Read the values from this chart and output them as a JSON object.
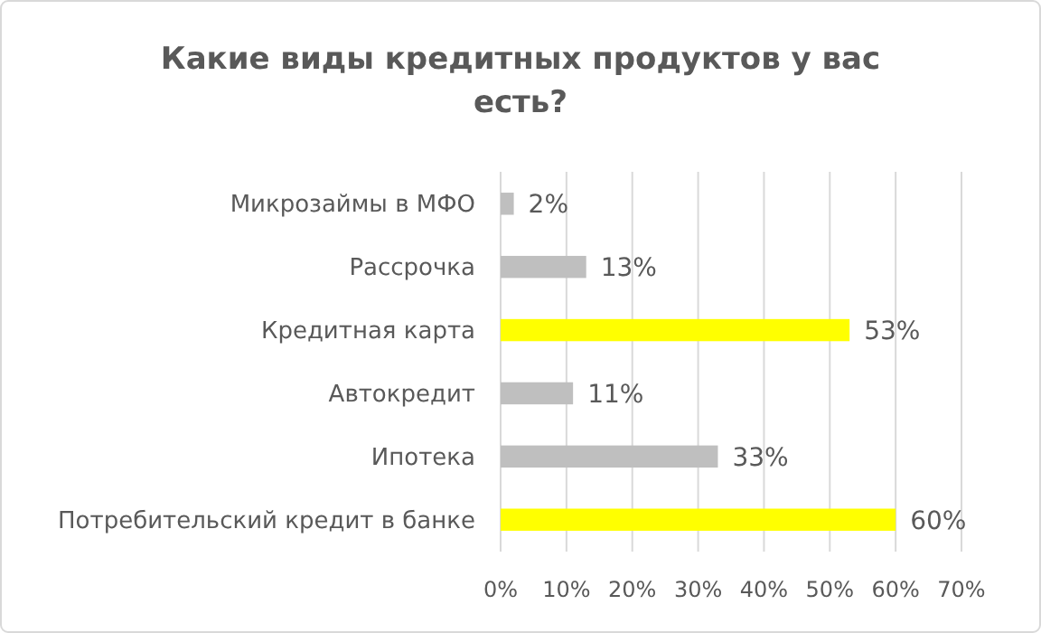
{
  "chart_data": {
    "type": "bar",
    "orientation": "horizontal",
    "title": "Какие виды кредитных продуктов у вас есть?",
    "categories": [
      "Микрозаймы в МФО",
      "Рассрочка",
      "Кредитная карта",
      "Автокредит",
      "Ипотека",
      "Потребительский кредит в банке"
    ],
    "values": [
      2,
      13,
      53,
      11,
      33,
      60
    ],
    "colors": [
      "#bfbfbf",
      "#bfbfbf",
      "#ffff00",
      "#bfbfbf",
      "#bfbfbf",
      "#ffff00"
    ],
    "value_labels": [
      "2%",
      "13%",
      "53%",
      "11%",
      "33%",
      "60%"
    ],
    "xlim": [
      0,
      70
    ],
    "xticks": [
      {
        "value": 0,
        "label": "0%"
      },
      {
        "value": 10,
        "label": "10%"
      },
      {
        "value": 20,
        "label": "20%"
      },
      {
        "value": 30,
        "label": "30%"
      },
      {
        "value": 40,
        "label": "40%"
      },
      {
        "value": 50,
        "label": "50%"
      },
      {
        "value": 60,
        "label": "60%"
      },
      {
        "value": 70,
        "label": "70%"
      }
    ],
    "grid": "x"
  }
}
